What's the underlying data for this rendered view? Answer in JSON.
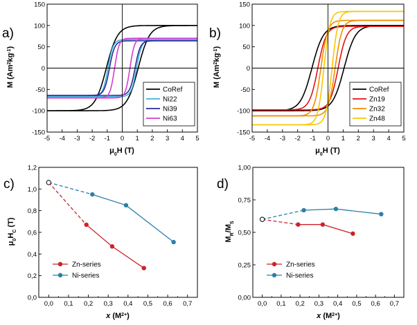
{
  "chart_data": [
    {
      "id": "a",
      "panel_label": "a)",
      "type": "line",
      "title": "",
      "xlabel": "μ₀H (T)",
      "ylabel": "M (Am²kg⁻¹)",
      "xlim": [
        -5,
        5
      ],
      "ylim": [
        -150,
        150
      ],
      "xticks": [
        -5,
        -4,
        -3,
        -2,
        -1,
        0,
        1,
        2,
        3,
        4,
        5
      ],
      "yticks": [
        -150,
        -100,
        -50,
        0,
        50,
        100,
        150
      ],
      "legend_position": "bottom-right",
      "series": [
        {
          "name": "CoRef",
          "color": "#000000",
          "Ms": 100,
          "Hc": 1.06,
          "Mr_frac": 0.6,
          "width": 0.75
        },
        {
          "name": "Ni22",
          "color": "#3fb3d9",
          "Ms": 67,
          "Hc": 0.95,
          "Mr_frac": 0.67,
          "width": 0.35
        },
        {
          "name": "Ni39",
          "color": "#2a2a9c",
          "Ms": 64,
          "Hc": 0.85,
          "Mr_frac": 0.68,
          "width": 0.35
        },
        {
          "name": "Ni63",
          "color": "#d63ad6",
          "Ms": 70,
          "Hc": 0.51,
          "Mr_frac": 0.64,
          "width": 0.3
        }
      ]
    },
    {
      "id": "b",
      "panel_label": "b)",
      "type": "line",
      "title": "",
      "xlabel": "μ₀H (T)",
      "ylabel": "M (Am²kg⁻¹)",
      "xlim": [
        -5,
        5
      ],
      "ylim": [
        -150,
        150
      ],
      "xticks": [
        -5,
        -4,
        -3,
        -2,
        -1,
        0,
        1,
        2,
        3,
        4,
        5
      ],
      "yticks": [
        -150,
        -100,
        -50,
        0,
        50,
        100,
        150
      ],
      "legend_position": "bottom-right",
      "series": [
        {
          "name": "CoRef",
          "color": "#000000",
          "Ms": 100,
          "Hc": 1.06,
          "Mr_frac": 0.6,
          "width": 0.75
        },
        {
          "name": "Zn19",
          "color": "#e01010",
          "Ms": 98,
          "Hc": 0.67,
          "Mr_frac": 0.56,
          "width": 0.55
        },
        {
          "name": "Zn32",
          "color": "#f08c00",
          "Ms": 112,
          "Hc": 0.47,
          "Mr_frac": 0.56,
          "width": 0.45
        },
        {
          "name": "Zn48",
          "color": "#f5c800",
          "Ms": 133,
          "Hc": 0.27,
          "Mr_frac": 0.49,
          "width": 0.4
        }
      ]
    },
    {
      "id": "c",
      "panel_label": "c)",
      "type": "line",
      "title": "",
      "xlabel": "x (M²⁺)",
      "ylabel": "μ₀H_C (T)",
      "xlim": [
        -0.05,
        0.75
      ],
      "ylim": [
        0,
        1.2
      ],
      "xticks": [
        "0,0",
        "0,1",
        "0,2",
        "0,3",
        "0,4",
        "0,5",
        "0,6",
        "0,7"
      ],
      "yticks": [
        "0,0",
        "0,2",
        "0,4",
        "0,6",
        "0,8",
        "1,0",
        "1,2"
      ],
      "legend_position": "bottom-left",
      "reference_point": {
        "x": 0.0,
        "y": 1.06
      },
      "series": [
        {
          "name": "Zn-series",
          "color": "#cc2229",
          "x": [
            0.19,
            0.32,
            0.48
          ],
          "y": [
            0.67,
            0.47,
            0.27
          ]
        },
        {
          "name": "Ni-series",
          "color": "#2b7fa8",
          "x": [
            0.22,
            0.39,
            0.63
          ],
          "y": [
            0.95,
            0.85,
            0.51
          ]
        }
      ]
    },
    {
      "id": "d",
      "panel_label": "d)",
      "type": "line",
      "title": "",
      "xlabel": "x (M²⁺)",
      "ylabel": "M_R/M_S",
      "xlim": [
        -0.05,
        0.75
      ],
      "ylim": [
        0,
        1.0
      ],
      "xticks": [
        "0,0",
        "0,1",
        "0,2",
        "0,3",
        "0,4",
        "0,5",
        "0,6",
        "0,7"
      ],
      "yticks": [
        "0,00",
        "0,25",
        "0,50",
        "0,75",
        "1,00"
      ],
      "legend_position": "bottom-left",
      "reference_point": {
        "x": 0.0,
        "y": 0.6
      },
      "series": [
        {
          "name": "Zn-series",
          "color": "#cc2229",
          "x": [
            0.19,
            0.32,
            0.48
          ],
          "y": [
            0.56,
            0.56,
            0.49
          ]
        },
        {
          "name": "Ni-series",
          "color": "#2b7fa8",
          "x": [
            0.22,
            0.39,
            0.63
          ],
          "y": [
            0.67,
            0.68,
            0.64
          ]
        }
      ]
    }
  ]
}
